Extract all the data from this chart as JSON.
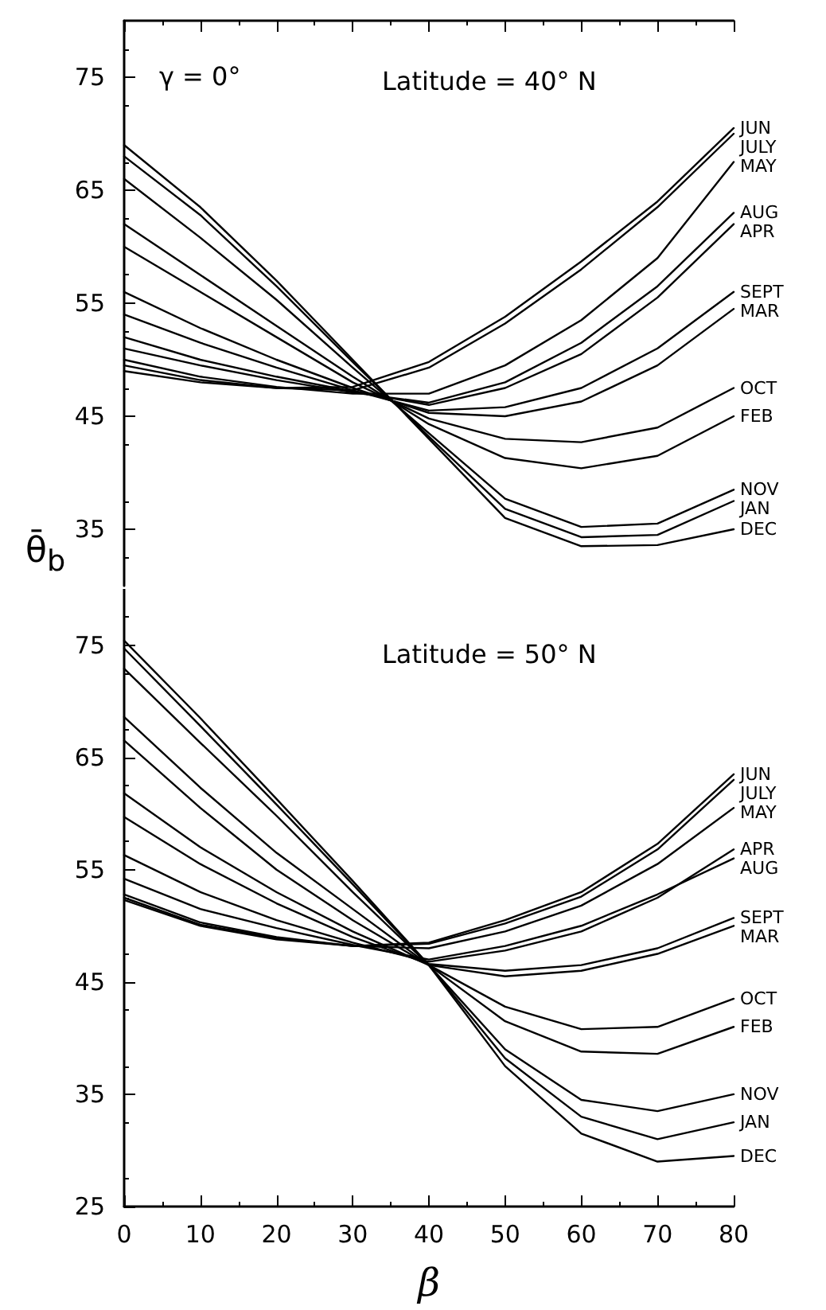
{
  "chart_data": [
    {
      "type": "line",
      "title": "Latitude = 40° N",
      "ylabel": "θ̄$_{b}$",
      "annotations": [
        "γ = 0°"
      ],
      "x": [
        0,
        10,
        20,
        30,
        40,
        50,
        60,
        70,
        80
      ],
      "xlim": [
        0,
        80
      ],
      "xticks": [
        0,
        10,
        20,
        30,
        40,
        50,
        60,
        70,
        80
      ],
      "ylim": [
        30,
        80
      ],
      "yticks": [
        35,
        45,
        55,
        65,
        75
      ],
      "tick_labels": "y",
      "grid": false,
      "marker": "none",
      "series": [
        {
          "name": "JUN",
          "color": "#000000",
          "values": [
            49,
            48,
            47.5,
            47.6,
            49.8,
            53.8,
            58.7,
            64,
            70.5
          ]
        },
        {
          "name": "JULY",
          "color": "#000000",
          "values": [
            49.5,
            48.2,
            47.5,
            47.3,
            49.3,
            53.2,
            58,
            63.5,
            70
          ]
        },
        {
          "name": "MAY",
          "color": "#000000",
          "values": [
            50,
            48.5,
            47.6,
            47,
            47,
            49.5,
            53.5,
            59,
            67.5
          ]
        },
        {
          "name": "AUG",
          "color": "#000000",
          "values": [
            51,
            49.5,
            48.2,
            47.1,
            46.2,
            48,
            51.5,
            56.5,
            63
          ]
        },
        {
          "name": "APR",
          "color": "#000000",
          "values": [
            52,
            50,
            48.5,
            47.2,
            46,
            47.5,
            50.5,
            55.5,
            62
          ]
        },
        {
          "name": "SEPT",
          "color": "#000000",
          "values": [
            54,
            51.5,
            49.3,
            47.3,
            45.5,
            45.8,
            47.5,
            51,
            56
          ]
        },
        {
          "name": "MAR",
          "color": "#000000",
          "values": [
            56,
            52.8,
            50,
            47.5,
            45.3,
            45,
            46.3,
            49.5,
            54.5
          ]
        },
        {
          "name": "OCT",
          "color": "#000000",
          "values": [
            60,
            56,
            52,
            48,
            44.8,
            43,
            42.7,
            44,
            47.5
          ]
        },
        {
          "name": "FEB",
          "color": "#000000",
          "values": [
            62,
            57.5,
            53,
            48.5,
            44.3,
            41.3,
            40.4,
            41.5,
            45
          ]
        },
        {
          "name": "NOV",
          "color": "#000000",
          "values": [
            66,
            60.8,
            55.3,
            49.3,
            43.5,
            37.7,
            35.2,
            35.5,
            38.5
          ]
        },
        {
          "name": "JAN",
          "color": "#000000",
          "values": [
            68,
            62.8,
            56.5,
            49.8,
            43.2,
            36.8,
            34.3,
            34.5,
            37.5
          ]
        },
        {
          "name": "DEC",
          "color": "#000000",
          "values": [
            69,
            63.5,
            57,
            50,
            43,
            36,
            33.5,
            33.6,
            35
          ]
        }
      ]
    },
    {
      "type": "line",
      "title": "Latitude = 50° N",
      "xlabel": "β",
      "x": [
        0,
        10,
        20,
        30,
        40,
        50,
        60,
        70,
        80
      ],
      "xlim": [
        0,
        80
      ],
      "xticks": [
        0,
        10,
        20,
        30,
        40,
        50,
        60,
        70,
        80
      ],
      "ylim": [
        25,
        80
      ],
      "yticks": [
        25,
        35,
        45,
        55,
        65,
        75
      ],
      "grid": false,
      "marker": "none",
      "series": [
        {
          "name": "JUN",
          "color": "#000000",
          "values": [
            52.3,
            50,
            48.8,
            48.2,
            48.5,
            50.5,
            53,
            57.3,
            63.5
          ]
        },
        {
          "name": "JULY",
          "color": "#000000",
          "values": [
            52.5,
            50.1,
            48.9,
            48.2,
            48.4,
            50.2,
            52.6,
            56.8,
            63
          ]
        },
        {
          "name": "MAY",
          "color": "#000000",
          "values": [
            52.8,
            50.3,
            49,
            48.2,
            48,
            49.5,
            51.8,
            55.5,
            60.5
          ]
        },
        {
          "name": "AUG",
          "color": "#000000",
          "values": [
            54.2,
            51.5,
            49.8,
            48.3,
            47,
            48.2,
            50,
            52.8,
            56
          ]
        },
        {
          "name": "APR",
          "color": "#000000",
          "values": [
            56.3,
            53,
            50.5,
            48.5,
            46.8,
            47.8,
            49.5,
            52.5,
            56.8
          ]
        },
        {
          "name": "SEPT",
          "color": "#000000",
          "values": [
            59.7,
            55.5,
            52,
            49,
            46.6,
            46,
            46.5,
            48,
            50.7
          ]
        },
        {
          "name": "MAR",
          "color": "#000000",
          "values": [
            61.8,
            57,
            53,
            49.5,
            46.5,
            45.5,
            46,
            47.5,
            50
          ]
        },
        {
          "name": "OCT",
          "color": "#000000",
          "values": [
            66.5,
            60.5,
            55,
            50.5,
            46.5,
            42.8,
            40.8,
            41,
            43.5
          ]
        },
        {
          "name": "FEB",
          "color": "#000000",
          "values": [
            68.6,
            62.3,
            56.5,
            51.5,
            46.5,
            41.5,
            38.8,
            38.6,
            41
          ]
        },
        {
          "name": "NOV",
          "color": "#000000",
          "values": [
            72.9,
            66.3,
            59.8,
            53,
            46.5,
            39,
            34.5,
            33.5,
            35
          ]
        },
        {
          "name": "JAN",
          "color": "#000000",
          "values": [
            74.7,
            67.8,
            60.8,
            53.7,
            46.5,
            38.2,
            33,
            31,
            32.5
          ]
        },
        {
          "name": "DEC",
          "color": "#000000",
          "values": [
            75.4,
            68.5,
            61.3,
            54,
            46.5,
            37.5,
            31.5,
            29,
            29.5
          ]
        }
      ]
    }
  ]
}
